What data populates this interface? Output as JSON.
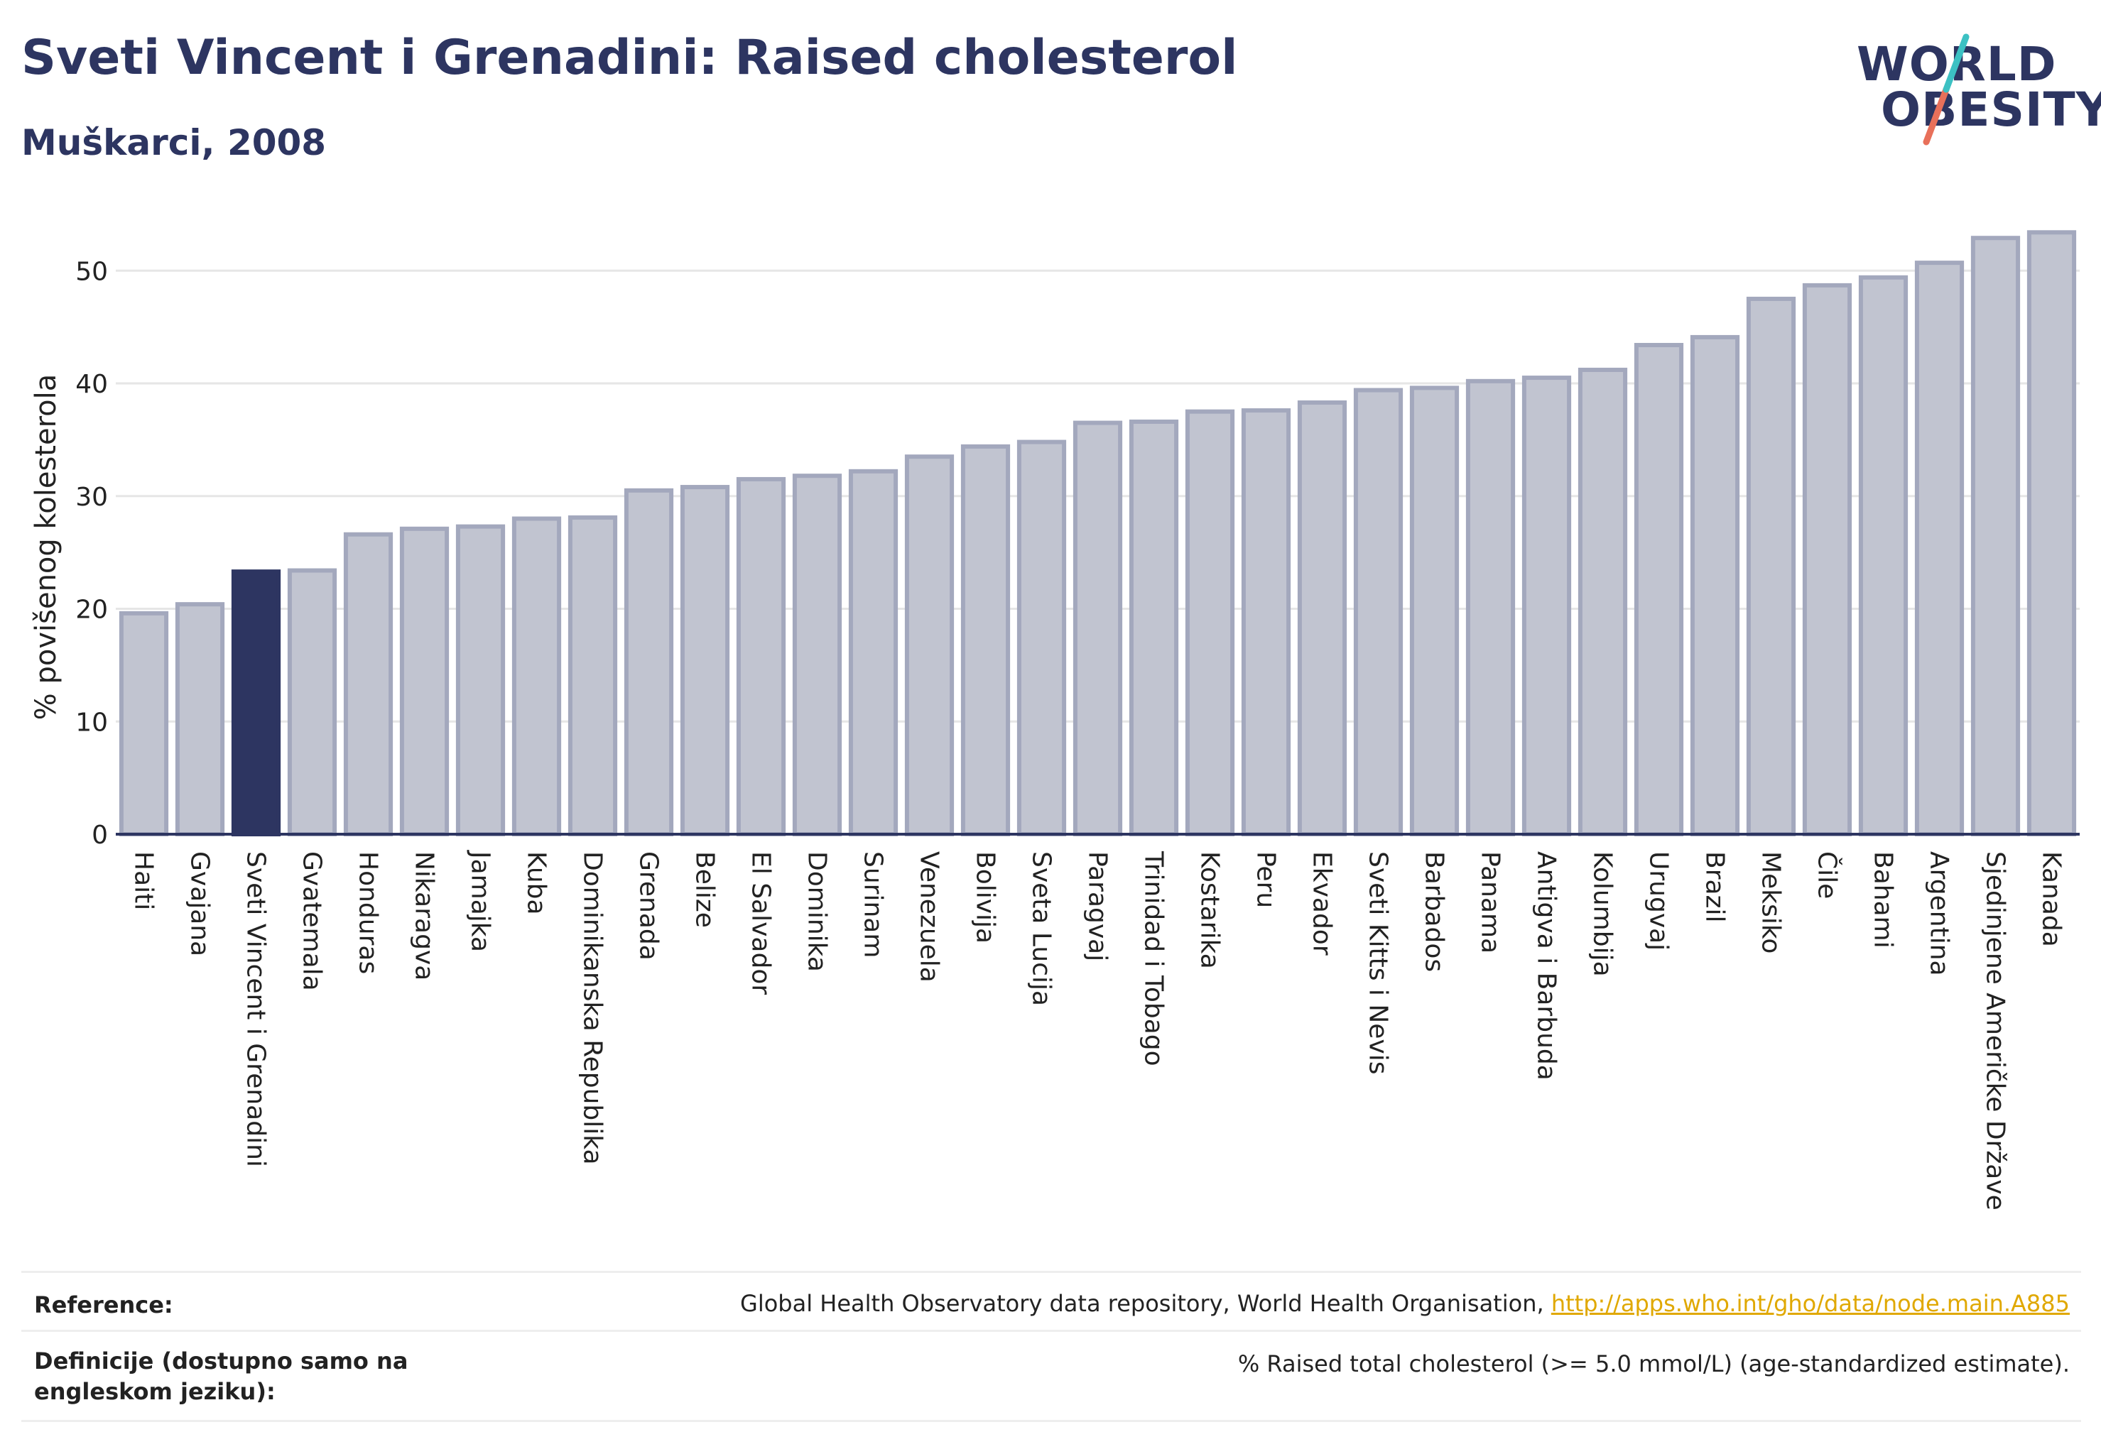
{
  "header": {
    "title": "Sveti Vincent i Grenadini: Raised cholesterol",
    "subtitle": "Muškarci, 2008"
  },
  "logo": {
    "line1": "WORLD",
    "line2": "OBESITY",
    "brand_colors": [
      "#2d3561",
      "#3cc1c3",
      "#e8705a"
    ]
  },
  "chart_data": {
    "type": "bar",
    "title": "Sveti Vincent i Grenadini: Raised cholesterol",
    "subtitle": "Muškarci, 2008",
    "xlabel": "",
    "ylabel": "% povišenog kolesterola",
    "ylim": [
      0,
      56
    ],
    "yticks": [
      0,
      10,
      20,
      30,
      40,
      50
    ],
    "grid": true,
    "highlight": "Sveti Vincent i Grenadini",
    "colors": {
      "bar": "#c1c4d0",
      "bar_edge": "#a3a8bd",
      "highlight": "#2d3561",
      "axis": "#2d3561",
      "grid": "#e6e6e6"
    },
    "categories": [
      "Haiti",
      "Gvajana",
      "Sveti Vincent i Grenadini",
      "Gvatemala",
      "Honduras",
      "Nikaragva",
      "Jamajka",
      "Kuba",
      "Dominikanska Republika",
      "Grenada",
      "Belize",
      "El Salvador",
      "Dominika",
      "Surinam",
      "Venezuela",
      "Bolivija",
      "Sveta Lucija",
      "Paragvaj",
      "Trinidad i Tobago",
      "Kostarika",
      "Peru",
      "Ekvador",
      "Sveti Kitts i Nevis",
      "Barbados",
      "Panama",
      "Antigva i Barbuda",
      "Kolumbija",
      "Urugvaj",
      "Brazil",
      "Meksiko",
      "Čile",
      "Bahami",
      "Argentina",
      "Sjedinjene Američke Države",
      "Kanada"
    ],
    "values": [
      19.6,
      20.4,
      23.3,
      23.4,
      26.6,
      27.1,
      27.3,
      28.0,
      28.1,
      30.5,
      30.8,
      31.5,
      31.8,
      32.2,
      33.5,
      34.4,
      34.8,
      36.5,
      36.6,
      37.5,
      37.6,
      38.3,
      39.4,
      39.6,
      40.2,
      40.5,
      41.2,
      43.4,
      44.1,
      47.5,
      48.7,
      49.4,
      50.7,
      52.9,
      53.4
    ]
  },
  "footer": {
    "reference_label": "Reference:",
    "reference_text": "Global Health Observatory data repository, World Health Organisation, ",
    "reference_link": "http://apps.who.int/gho/data/node.main.A885",
    "definition_label": "Definicije (dostupno samo na engleskom jeziku):",
    "definition_text": "% Raised total cholesterol (>= 5.0 mmol/L) (age-standardized estimate)."
  }
}
